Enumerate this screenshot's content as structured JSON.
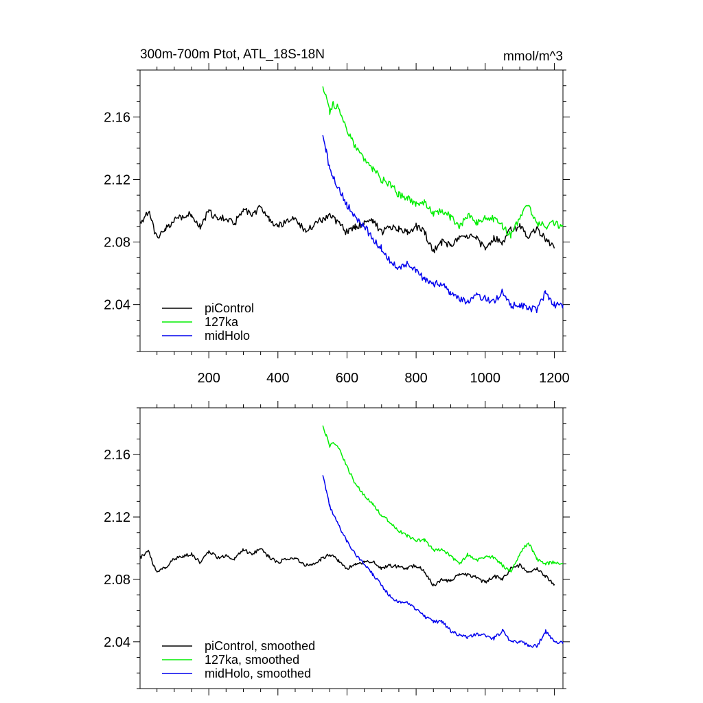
{
  "figure": {
    "title_left": "300m-700m Ptot, ATL_18S-18N",
    "title_right": "mmol/m^3"
  },
  "chart_data": [
    {
      "type": "line",
      "title": "300m-700m Ptot, ATL_18S-18N",
      "units": "mmol/m^3",
      "xlim": [
        1,
        1225
      ],
      "ylim": [
        2.01,
        2.19
      ],
      "xticks": [
        200,
        400,
        600,
        800,
        1000,
        1200
      ],
      "xtick_labels": [
        "200",
        "400",
        "600",
        "800",
        "1000",
        "1200"
      ],
      "yticks": [
        2.04,
        2.08,
        2.12,
        2.16
      ],
      "ytick_labels": [
        "2.04",
        "2.08",
        "2.12",
        "2.16"
      ],
      "legend": [
        "piControl",
        "127ka",
        "midHolo"
      ],
      "legend_position": "bottom-left",
      "series": [
        {
          "name": "piControl",
          "color": "#000000",
          "x": [
            1,
            25,
            50,
            75,
            100,
            125,
            150,
            175,
            200,
            225,
            250,
            275,
            300,
            325,
            350,
            375,
            400,
            425,
            450,
            475,
            500,
            525,
            550,
            575,
            600,
            625,
            650,
            675,
            700,
            725,
            750,
            775,
            800,
            825,
            850,
            875,
            900,
            925,
            950,
            975,
            1000,
            1025,
            1050,
            1075,
            1100,
            1125,
            1150,
            1175,
            1200
          ],
          "values": [
            2.092,
            2.1,
            2.082,
            2.088,
            2.094,
            2.096,
            2.098,
            2.09,
            2.1,
            2.094,
            2.096,
            2.092,
            2.101,
            2.097,
            2.102,
            2.094,
            2.09,
            2.093,
            2.095,
            2.088,
            2.09,
            2.094,
            2.098,
            2.092,
            2.086,
            2.09,
            2.092,
            2.094,
            2.086,
            2.09,
            2.088,
            2.087,
            2.09,
            2.086,
            2.074,
            2.08,
            2.078,
            2.084,
            2.084,
            2.082,
            2.076,
            2.083,
            2.08,
            2.088,
            2.09,
            2.084,
            2.088,
            2.082,
            2.076
          ]
        },
        {
          "name": "127ka",
          "color": "#00ee00",
          "x": [
            530,
            540,
            550,
            560,
            575,
            600,
            625,
            650,
            675,
            700,
            725,
            750,
            775,
            800,
            825,
            850,
            875,
            900,
            925,
            950,
            975,
            1000,
            1025,
            1050,
            1075,
            1100,
            1125,
            1150,
            1175,
            1200,
            1225
          ],
          "values": [
            2.178,
            2.172,
            2.163,
            2.168,
            2.166,
            2.152,
            2.14,
            2.133,
            2.127,
            2.12,
            2.117,
            2.11,
            2.108,
            2.104,
            2.106,
            2.098,
            2.1,
            2.096,
            2.09,
            2.097,
            2.092,
            2.096,
            2.095,
            2.09,
            2.084,
            2.096,
            2.104,
            2.092,
            2.09,
            2.092,
            2.09
          ]
        },
        {
          "name": "midHolo",
          "color": "#0000ee",
          "x": [
            530,
            540,
            550,
            560,
            575,
            600,
            625,
            650,
            675,
            700,
            725,
            750,
            775,
            800,
            825,
            850,
            875,
            900,
            925,
            950,
            975,
            1000,
            1025,
            1050,
            1075,
            1100,
            1125,
            1150,
            1175,
            1200,
            1225
          ],
          "values": [
            2.148,
            2.138,
            2.126,
            2.122,
            2.114,
            2.104,
            2.096,
            2.09,
            2.082,
            2.076,
            2.068,
            2.064,
            2.066,
            2.061,
            2.056,
            2.053,
            2.054,
            2.047,
            2.044,
            2.042,
            2.046,
            2.044,
            2.042,
            2.048,
            2.039,
            2.04,
            2.038,
            2.036,
            2.048,
            2.04,
            2.04
          ]
        }
      ]
    },
    {
      "type": "line",
      "xlim": [
        1,
        1225
      ],
      "ylim": [
        2.01,
        2.19
      ],
      "yticks": [
        2.04,
        2.08,
        2.12,
        2.16
      ],
      "ytick_labels": [
        "2.04",
        "2.08",
        "2.12",
        "2.16"
      ],
      "legend": [
        "piControl, smoothed",
        "127ka, smoothed",
        "midHolo, smoothed"
      ],
      "legend_position": "bottom-left",
      "series": [
        {
          "name": "piControl, smoothed",
          "color": "#000000",
          "x": [
            1,
            25,
            50,
            75,
            100,
            125,
            150,
            175,
            200,
            225,
            250,
            275,
            300,
            325,
            350,
            375,
            400,
            425,
            450,
            475,
            500,
            525,
            550,
            575,
            600,
            625,
            650,
            675,
            700,
            725,
            750,
            775,
            800,
            825,
            850,
            875,
            900,
            925,
            950,
            975,
            1000,
            1025,
            1050,
            1075,
            1100,
            1125,
            1150,
            1175,
            1200
          ],
          "values": [
            2.094,
            2.098,
            2.084,
            2.088,
            2.093,
            2.095,
            2.096,
            2.091,
            2.098,
            2.094,
            2.095,
            2.093,
            2.099,
            2.096,
            2.1,
            2.094,
            2.091,
            2.093,
            2.094,
            2.089,
            2.09,
            2.093,
            2.096,
            2.092,
            2.087,
            2.09,
            2.091,
            2.092,
            2.087,
            2.089,
            2.088,
            2.087,
            2.089,
            2.085,
            2.076,
            2.08,
            2.079,
            2.083,
            2.083,
            2.081,
            2.078,
            2.082,
            2.08,
            2.087,
            2.089,
            2.084,
            2.087,
            2.082,
            2.077
          ]
        },
        {
          "name": "127ka, smoothed",
          "color": "#00ee00",
          "x": [
            530,
            540,
            550,
            560,
            575,
            600,
            625,
            650,
            675,
            700,
            725,
            750,
            775,
            800,
            825,
            850,
            875,
            900,
            925,
            950,
            975,
            1000,
            1025,
            1050,
            1075,
            1100,
            1125,
            1150,
            1175,
            1200,
            1225
          ],
          "values": [
            2.178,
            2.172,
            2.165,
            2.168,
            2.165,
            2.152,
            2.141,
            2.134,
            2.128,
            2.121,
            2.117,
            2.111,
            2.108,
            2.105,
            2.105,
            2.099,
            2.099,
            2.095,
            2.09,
            2.096,
            2.092,
            2.095,
            2.094,
            2.089,
            2.085,
            2.096,
            2.104,
            2.093,
            2.09,
            2.091,
            2.09
          ]
        },
        {
          "name": "midHolo, smoothed",
          "color": "#0000ee",
          "x": [
            530,
            540,
            550,
            560,
            575,
            600,
            625,
            650,
            675,
            700,
            725,
            750,
            775,
            800,
            825,
            850,
            875,
            900,
            925,
            950,
            975,
            1000,
            1025,
            1050,
            1075,
            1100,
            1125,
            1150,
            1175,
            1200,
            1225
          ],
          "values": [
            2.146,
            2.137,
            2.127,
            2.122,
            2.115,
            2.104,
            2.096,
            2.09,
            2.083,
            2.076,
            2.069,
            2.065,
            2.065,
            2.061,
            2.056,
            2.053,
            2.053,
            2.047,
            2.044,
            2.043,
            2.045,
            2.044,
            2.042,
            2.047,
            2.04,
            2.04,
            2.038,
            2.037,
            2.047,
            2.04,
            2.04
          ]
        }
      ]
    }
  ]
}
